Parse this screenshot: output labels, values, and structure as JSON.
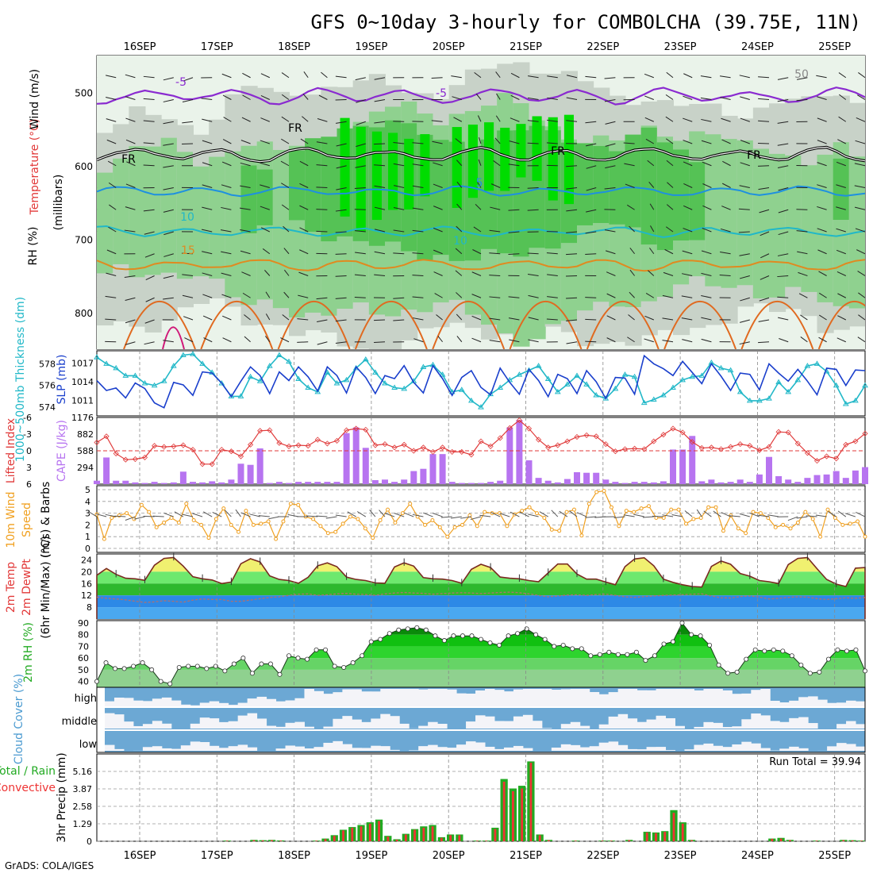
{
  "title": "GFS 0~10day 3-hourly for COMBOLCHA (39.75E, 11N)",
  "footer": "GrADS: COLA/IGES",
  "run_total_label": "Run Total = 39.94",
  "date_labels": [
    "16SEP",
    "17SEP",
    "18SEP",
    "19SEP",
    "20SEP",
    "21SEP",
    "22SEP",
    "23SEP",
    "24SEP",
    "25SEP"
  ],
  "colors": {
    "rh_green_dark": "#00dc00",
    "rh_green_mid": "#55c255",
    "rh_green_light": "#8fd18f",
    "grey_shade": "#c8d2c8",
    "slp_line": "#1a3fcc",
    "thickness_line": "#22b8c8",
    "cape_bar": "#b774f0",
    "lifted_index": "#e03a3a",
    "wind_speed": "#f0a020",
    "cloud_blue": "#6ca8d4",
    "cloud_white": "#f4f4f8",
    "precip_total": "#22aa22",
    "precip_conv": "#ee3333"
  },
  "chart_data": [
    {
      "type": "heatmap",
      "panel": "upper-air",
      "ylabel": "(millibars)",
      "y_ticks": [
        500,
        600,
        700,
        800
      ],
      "ylim": [
        450,
        850
      ],
      "side_labels": [
        "RH (%)",
        "Temperature (°C)",
        "Wind (m/s)"
      ],
      "isotherm_labels": [
        "-5",
        "-5",
        "FR",
        "FR",
        "FR",
        "FR",
        "5",
        "10",
        "10",
        "15",
        "50"
      ]
    },
    {
      "type": "line",
      "panel": "slp-thickness",
      "ylabel_left": "1000~500mb Thickness (dm)",
      "ylabel_right": "SLP (mb)",
      "left_ticks": [
        "578",
        "576",
        "574"
      ],
      "right_ticks": [
        "1017",
        "1014",
        "1011"
      ],
      "series": [
        {
          "name": "SLP (mb)",
          "values": [
            1014.2,
            1012.6,
            1013.0,
            1011.4,
            1013.8,
            1012.9,
            1010.6,
            1009.8,
            1013.9,
            1013.5,
            1011.8,
            1015.6,
            1015.4,
            1013.8,
            1011.6,
            1014.1,
            1016.4,
            1015.0,
            1012.1,
            1015.6,
            1014.2,
            1016.4,
            1014.8,
            1012.5,
            1016.4,
            1015.0,
            1012.2,
            1016.4,
            1014.7,
            1012.1,
            1015.0,
            1014.5,
            1016.6,
            1013.9,
            1012.2,
            1016.6,
            1014.5,
            1011.8,
            1014.7,
            1015.8,
            1013.1,
            1011.9,
            1016.2,
            1013.9,
            1012.0,
            1016.0,
            1014.2,
            1011.6,
            1015.2,
            1014.5,
            1012.1,
            1015.8,
            1014.0,
            1011.3,
            1014.7,
            1014.6,
            1012.0,
            1018.2,
            1016.9,
            1016.1,
            1015.0,
            1017.3,
            1015.5,
            1013.7,
            1016.9,
            1014.9,
            1012.6,
            1015.4,
            1015.2,
            1012.7,
            1016.9,
            1015.4,
            1014.1,
            1016.0,
            1014.1,
            1011.9,
            1016.2,
            1016.0,
            1013.4,
            1015.9,
            1015.8
          ]
        },
        {
          "name": "1000~500mb Thickness (dm)",
          "values": [
            578.6,
            578.0,
            577.6,
            576.9,
            576.9,
            576.2,
            576.0,
            576.4,
            577.8,
            578.8,
            578.9,
            578.0,
            577.2,
            576.2,
            575.0,
            575.0,
            576.8,
            576.4,
            577.8,
            578.8,
            578.2,
            576.6,
            575.8,
            575.4,
            577.2,
            576.2,
            576.5,
            577.6,
            578.4,
            577.2,
            576.2,
            575.8,
            575.7,
            576.4,
            577.7,
            577.9,
            577.0,
            575.4,
            575.6,
            574.6,
            574.0,
            575.2,
            575.8,
            576.5,
            577.0,
            577.4,
            577.8,
            576.6,
            575.4,
            576.1,
            576.9,
            576.1,
            575.1,
            574.8,
            575.7,
            577.0,
            576.8,
            574.4,
            574.7,
            575.1,
            575.8,
            576.5,
            576.8,
            576.9,
            578.1,
            577.6,
            577.4,
            575.4,
            574.6,
            574.6,
            574.8,
            576.3,
            575.4,
            576.5,
            577.8,
            578.0,
            577.3,
            576.0,
            574.3,
            574.6,
            576.0
          ]
        }
      ]
    },
    {
      "type": "bar",
      "panel": "cape-lifted-index",
      "ylabel_left": "Lifted Index",
      "ylabel_right": "CAPE (J/kg)",
      "left_ticks": [
        "-6",
        "-3",
        "0",
        "3",
        "6"
      ],
      "right_ticks": [
        "1176",
        "882",
        "588",
        "294"
      ],
      "series": [
        {
          "name": "CAPE (J/kg)",
          "values": [
            60,
            470,
            60,
            60,
            30,
            20,
            40,
            20,
            30,
            220,
            40,
            30,
            50,
            30,
            80,
            360,
            340,
            630,
            20,
            40,
            20,
            40,
            40,
            40,
            40,
            40,
            900,
            1000,
            640,
            70,
            80,
            40,
            80,
            230,
            270,
            530,
            530,
            40,
            20,
            20,
            20,
            40,
            60,
            1000,
            1130,
            420,
            110,
            60,
            30,
            90,
            210,
            200,
            200,
            80,
            40,
            20,
            40,
            40,
            30,
            50,
            610,
            610,
            850,
            50,
            80,
            30,
            40,
            80,
            40,
            170,
            480,
            140,
            80,
            40,
            110,
            160,
            170,
            230,
            110,
            240,
            300
          ]
        },
        {
          "name": "Lifted Index",
          "values": [
            -1.5,
            -2.6,
            0.5,
            1.6,
            1.5,
            1.2,
            -0.9,
            -0.7,
            -0.8,
            -1.0,
            -0.2,
            2.4,
            2.4,
            -0.2,
            0.1,
            1.0,
            -1.1,
            -3.6,
            -3.7,
            -1.4,
            -0.8,
            -1.0,
            -0.9,
            -2.0,
            -1.3,
            -1.8,
            -3.7,
            -4.0,
            -3.8,
            -1.0,
            -1.2,
            -0.6,
            -1.1,
            0.0,
            -0.6,
            0.2,
            -0.6,
            0.2,
            0.2,
            0.7,
            -1.7,
            -0.8,
            -2.3,
            -4.1,
            -5.5,
            -4.0,
            -2.0,
            -0.6,
            -1.0,
            -1.7,
            -2.5,
            -2.8,
            -2.6,
            -1.2,
            0.1,
            -0.3,
            -0.4,
            -0.3,
            -1.7,
            -2.9,
            -4.0,
            -3.3,
            -1.6,
            -0.5,
            -0.6,
            -0.3,
            -0.7,
            -1.2,
            -0.9,
            -0.1,
            -0.7,
            -3.4,
            -3.3,
            -1.3,
            0.4,
            1.8,
            1.0,
            1.4,
            -1.1,
            -1.7,
            -3.1
          ]
        }
      ]
    },
    {
      "type": "line",
      "panel": "10m-wind",
      "ylabel": "10m Wind Speed & Barbs (m/s)",
      "y_ticks": [
        "5",
        "4",
        "3",
        "2",
        "1",
        "0"
      ],
      "ylim": [
        0,
        5
      ],
      "series": [
        {
          "name": "10m Wind Speed",
          "values": [
            2.9,
            0.8,
            2.6,
            2.8,
            3.0,
            2.5,
            3.7,
            3.1,
            1.8,
            2.2,
            2.6,
            2.2,
            3.8,
            2.4,
            2.0,
            0.9,
            2.5,
            3.4,
            2.0,
            1.4,
            3.2,
            2.0,
            2.1,
            2.3,
            0.8,
            2.3,
            3.8,
            3.7,
            2.7,
            2.5,
            1.9,
            1.3,
            1.4,
            2.1,
            2.7,
            2.5,
            1.7,
            0.9,
            2.4,
            3.3,
            2.2,
            3.0,
            3.8,
            2.7,
            2.0,
            2.4,
            1.8,
            1.0,
            1.8,
            2.0,
            2.8,
            1.9,
            3.1,
            3.0,
            3.0,
            1.9,
            2.9,
            3.2,
            3.5,
            3.0,
            2.6,
            1.6,
            1.5,
            3.1,
            3.3,
            1.1,
            3.8,
            4.8,
            4.9,
            3.5,
            1.9,
            3.2,
            3.1,
            3.4,
            3.6,
            2.6,
            2.6,
            3.3,
            3.3,
            2.1,
            2.5,
            2.6,
            3.5,
            3.5,
            1.5,
            2.8,
            1.7,
            1.3,
            3.1,
            3.0,
            2.6,
            1.8,
            2.0,
            1.7,
            2.2,
            3.1,
            2.5,
            1.0,
            3.3,
            2.6,
            2.0,
            2.1,
            2.3,
            1.0
          ]
        }
      ]
    },
    {
      "type": "area",
      "panel": "2m-temp",
      "ylabel": "2m Temp 2m DewPt (6hr Min/Max) (°C)",
      "y_ticks": [
        "24",
        "20",
        "16",
        "12",
        "8"
      ],
      "ylim": [
        4,
        26
      ],
      "series": [
        {
          "name": "2m Temp",
          "values": [
            18.8,
            21.1,
            19.1,
            17.8,
            17.6,
            17.1,
            22.2,
            24.5,
            24.8,
            21.9,
            18.3,
            17.6,
            17.2,
            16.0,
            16.5,
            22.7,
            24.4,
            23.3,
            18.6,
            17.4,
            17.0,
            16.1,
            18.1,
            22.0,
            23.0,
            21.7,
            18.2,
            17.4,
            17.0,
            16.2,
            16.1,
            21.6,
            23.0,
            21.9,
            18.0,
            17.6,
            17.5,
            17.0,
            16.1,
            20.8,
            22.5,
            21.4,
            18.2,
            17.8,
            17.6,
            17.0,
            16.6,
            19.6,
            22.6,
            22.6,
            19.2,
            17.5,
            17.5,
            16.5,
            15.6,
            21.7,
            24.3,
            24.7,
            22.0,
            17.5,
            16.4,
            15.6,
            15.0,
            14.8,
            21.8,
            23.6,
            22.5,
            19.4,
            18.5,
            17.0,
            16.6,
            16.0,
            22.4,
            24.5,
            24.8,
            21.0,
            17.4,
            15.8,
            15.0,
            21.2,
            21.4
          ]
        },
        {
          "name": "2m DewPt",
          "values": [
            11.4,
            11.0,
            10.8,
            10.5,
            10.0,
            9.6,
            9.8,
            10.2,
            10.0,
            9.7,
            10.4,
            10.8,
            10.6,
            10.6,
            10.0,
            10.0,
            10.4,
            10.9,
            11.3,
            11.5,
            12.0,
            12.4,
            12.5,
            12.0,
            12.2,
            12.5,
            12.7,
            12.4,
            12.3,
            12.0,
            12.5,
            12.8,
            13.0,
            12.8,
            12.7,
            12.4,
            12.6,
            12.8,
            12.9,
            12.8,
            12.6,
            12.8,
            13.0,
            13.1,
            12.9,
            12.5,
            12.0,
            11.5,
            11.8,
            12.1,
            12.2,
            12.0,
            12.3,
            12.4,
            12.0,
            11.5,
            11.3,
            11.6,
            11.8,
            12.0,
            12.1,
            12.2,
            12.4,
            12.5,
            11.8,
            11.2,
            11.1,
            11.6,
            11.8,
            11.4,
            10.8,
            11.0,
            11.3,
            11.5,
            11.4,
            10.9,
            10.6,
            10.9,
            11.2,
            11.0,
            11.3
          ]
        }
      ]
    },
    {
      "type": "area",
      "panel": "2m-rh",
      "ylabel": "2m RH (%)",
      "y_ticks": [
        "90",
        "80",
        "70",
        "60",
        "50",
        "40"
      ],
      "ylim": [
        35,
        92
      ],
      "series": [
        {
          "name": "2m RH",
          "values": [
            40,
            56,
            51,
            51,
            53,
            56,
            50,
            40,
            38,
            52,
            53,
            53,
            51,
            53,
            49,
            55,
            60,
            47,
            55,
            55,
            46,
            62,
            60,
            59,
            67,
            67,
            53,
            52,
            56,
            62,
            74,
            76,
            81,
            84,
            85,
            86,
            84,
            79,
            75,
            79,
            79,
            79,
            76,
            73,
            71,
            79,
            81,
            85,
            80,
            76,
            70,
            71,
            68,
            68,
            62,
            63,
            65,
            63,
            63,
            65,
            58,
            62,
            72,
            74,
            90,
            80,
            79,
            71,
            54,
            47,
            48,
            59,
            67,
            66,
            67,
            66,
            62,
            54,
            47,
            48,
            59,
            67,
            66,
            67,
            49
          ]
        }
      ]
    },
    {
      "type": "heatmap",
      "panel": "cloud-cover",
      "ylabel": "Cloud Cover (%)",
      "row_labels": [
        "high",
        "middle",
        "low"
      ]
    },
    {
      "type": "bar",
      "panel": "precip",
      "ylabel": "3hr Precip (mm)",
      "y_ticks": [
        "5.16",
        "3.87",
        "2.58",
        "1.29",
        "0"
      ],
      "ylim": [
        0,
        6.45
      ],
      "series": [
        {
          "name": "Total / Rain",
          "values": [
            0,
            0,
            0,
            0,
            0,
            0,
            0,
            0,
            0,
            0,
            0,
            0,
            0,
            0,
            0.05,
            0,
            0,
            0.1,
            0.08,
            0.1,
            0.06,
            0,
            0,
            0,
            0.05,
            0.2,
            0.45,
            0.85,
            1.05,
            1.2,
            1.4,
            1.6,
            0.4,
            0.15,
            0.55,
            0.9,
            1.1,
            1.2,
            0.3,
            0.5,
            0.5,
            0,
            0.05,
            0.05,
            1.0,
            4.6,
            3.9,
            4.1,
            5.9,
            0.5,
            0.1,
            0,
            0,
            0.05,
            0,
            0,
            0.05,
            0.05,
            0,
            0.1,
            0,
            0.7,
            0.65,
            0.75,
            2.3,
            1.4,
            0.1,
            0,
            0,
            0,
            0,
            0,
            0,
            0,
            0,
            0.2,
            0.25,
            0.1,
            0,
            0,
            0.05,
            0,
            0,
            0.1,
            0.08,
            0.05
          ]
        },
        {
          "name": "Convective",
          "values": [
            0,
            0,
            0,
            0,
            0,
            0,
            0,
            0,
            0,
            0,
            0,
            0,
            0,
            0,
            0.04,
            0,
            0,
            0.08,
            0.06,
            0.08,
            0.05,
            0,
            0,
            0,
            0.04,
            0.16,
            0.4,
            0.8,
            1.0,
            1.1,
            1.3,
            1.5,
            0.35,
            0.12,
            0.5,
            0.85,
            1.0,
            1.1,
            0.25,
            0.45,
            0.45,
            0,
            0.04,
            0.04,
            0.9,
            4.4,
            3.7,
            3.9,
            5.8,
            0.45,
            0.08,
            0,
            0,
            0.04,
            0,
            0,
            0.04,
            0.04,
            0,
            0.08,
            0,
            0.65,
            0.6,
            0.7,
            2.1,
            1.3,
            0.08,
            0,
            0,
            0,
            0,
            0,
            0,
            0,
            0,
            0.18,
            0.2,
            0.08,
            0,
            0,
            0.04,
            0,
            0,
            0.08,
            0.06,
            0.04
          ]
        }
      ]
    }
  ]
}
